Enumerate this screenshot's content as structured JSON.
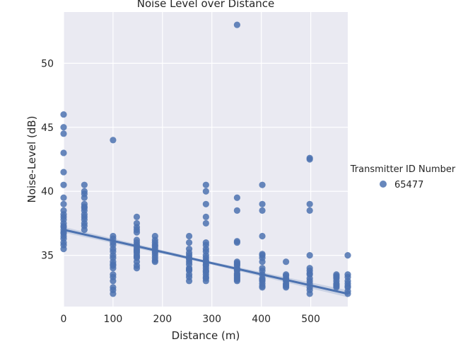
{
  "chart_data": {
    "type": "scatter",
    "title": "Noise Level over Distance",
    "xlabel": "Distance (m)",
    "ylabel": "Noise-Level (dB)",
    "xlim": [
      0,
      575
    ],
    "ylim": [
      31,
      54
    ],
    "xticks": [
      0,
      100,
      200,
      300,
      400,
      500
    ],
    "yticks": [
      35,
      40,
      45,
      50
    ],
    "grid": true,
    "legend": {
      "title": "Transmitter ID Number",
      "placement": "right"
    },
    "colors": {
      "series": "#4c72b0",
      "background": "#eaeaf2",
      "grid": "#ffffff"
    },
    "series": [
      {
        "name": "65477",
        "x": [
          0,
          0,
          0,
          0,
          0,
          0,
          0,
          0,
          0,
          0,
          0,
          0,
          0,
          0,
          0,
          0,
          0,
          0,
          0,
          0,
          0,
          0,
          0,
          42,
          42,
          42,
          42,
          42,
          42,
          42,
          42,
          42,
          42,
          42,
          42,
          42,
          42,
          100,
          100,
          100,
          100,
          100,
          100,
          100,
          100,
          100,
          100,
          100,
          100,
          100,
          100,
          100,
          100,
          100,
          100,
          100,
          148,
          148,
          148,
          148,
          148,
          148,
          148,
          148,
          148,
          148,
          148,
          148,
          148,
          148,
          148,
          148,
          148,
          148,
          148,
          185,
          185,
          185,
          185,
          185,
          185,
          185,
          185,
          185,
          185,
          185,
          185,
          254,
          254,
          254,
          254,
          254,
          254,
          254,
          254,
          254,
          254,
          254,
          254,
          254,
          254,
          254,
          288,
          288,
          288,
          288,
          288,
          288,
          288,
          288,
          288,
          288,
          288,
          288,
          288,
          288,
          288,
          288,
          288,
          288,
          288,
          288,
          288,
          288,
          351,
          351,
          351,
          351,
          351,
          351,
          351,
          351,
          351,
          351,
          351,
          351,
          351,
          351,
          351,
          351,
          351,
          351,
          351,
          402,
          402,
          402,
          402,
          402,
          402,
          402,
          402,
          402,
          402,
          402,
          402,
          402,
          402,
          402,
          402,
          402,
          450,
          450,
          450,
          450,
          450,
          450,
          450,
          450,
          450,
          450,
          498,
          498,
          498,
          498,
          498,
          498,
          498,
          498,
          498,
          498,
          498,
          498,
          498,
          498,
          498,
          552,
          552,
          552,
          552,
          552,
          552,
          552,
          552,
          552,
          575,
          575,
          575,
          575,
          575,
          575,
          575,
          575,
          575
        ],
        "y": [
          46,
          45,
          44.5,
          43,
          41.5,
          40.5,
          39.5,
          39,
          38.5,
          38,
          37.8,
          37.5,
          37.3,
          37,
          36.8,
          36.5,
          36.3,
          36,
          35.8,
          35.5,
          37.2,
          38.2,
          36.7,
          40.5,
          40,
          39.5,
          39,
          38.8,
          38.5,
          38.2,
          38,
          37.8,
          37.5,
          37.3,
          37,
          39.8,
          38.7,
          44,
          36.5,
          36,
          35.5,
          35,
          34.5,
          34,
          33.5,
          33,
          32.5,
          32,
          36.3,
          35.3,
          34.3,
          33.3,
          32.3,
          35.8,
          34.8,
          34.2,
          38,
          37.5,
          37,
          36,
          35.8,
          35.5,
          35.2,
          35,
          34.8,
          34.5,
          34,
          35.3,
          36.2,
          34.2,
          35.7,
          36.8,
          37.2,
          34.9,
          35.4,
          36.5,
          36,
          35.8,
          35.5,
          35,
          34.5,
          36.2,
          35.3,
          34.8,
          35.7,
          34.6,
          35.2,
          36.5,
          36,
          35.5,
          35,
          34.5,
          34,
          33.5,
          33,
          34.8,
          33.8,
          35.2,
          33.3,
          34.3,
          34.7,
          33.9,
          40.5,
          40,
          39,
          38,
          37.5,
          36,
          35.5,
          35,
          34.5,
          34,
          33.5,
          33,
          35.3,
          34.8,
          33.8,
          33.3,
          34.2,
          34.3,
          33.7,
          35.8,
          33.2,
          34.6,
          53,
          39.5,
          38.5,
          36,
          34.5,
          34,
          33.5,
          33,
          34.2,
          33.8,
          33.3,
          33.2,
          33.6,
          33.9,
          34.3,
          34.4,
          33.1,
          36.1,
          33.4,
          40.5,
          39,
          38.5,
          36.5,
          35,
          34.5,
          34,
          33.5,
          33,
          32.5,
          34.8,
          33.8,
          33.2,
          32.8,
          32.6,
          33.1,
          35.1,
          34.5,
          33.5,
          33,
          32.5,
          33.2,
          32.8,
          32.6,
          33.4,
          32.7,
          33.1,
          42.5,
          39,
          38.5,
          35,
          34,
          33.5,
          33,
          32.5,
          32,
          33.8,
          33.2,
          32.8,
          42.6,
          33.6,
          32.3,
          33.5,
          33,
          32.5,
          33.3,
          32.8,
          32.7,
          33.2,
          33.4,
          32.6,
          35,
          33.5,
          33,
          32.5,
          32,
          33.3,
          32.8,
          32.2,
          32.6
        ]
      }
    ],
    "regression": {
      "x": [
        0,
        575
      ],
      "y": [
        37.0,
        32.0
      ],
      "ci_band": true
    }
  }
}
